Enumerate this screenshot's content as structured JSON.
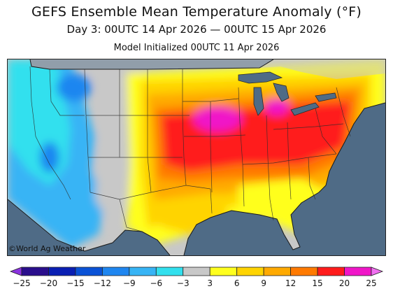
{
  "header": {
    "title": "GEFS Ensemble Mean Temperature Anomaly (°F)",
    "subtitle": "Day 3: 00UTC 14 Apr 2026 — 00UTC 15 Apr 2026",
    "initialized": "Model Initialized 00UTC 11 Apr 2026"
  },
  "credit": "©World Ag Weather",
  "colorbar": {
    "bins": [
      {
        "color": "#8b33e0"
      },
      {
        "color": "#2a0e8c"
      },
      {
        "color": "#0a1fb3"
      },
      {
        "color": "#0a52d6"
      },
      {
        "color": "#1f86f0"
      },
      {
        "color": "#37b4f5"
      },
      {
        "color": "#32e0ee"
      },
      {
        "color": "#c8c8c8"
      },
      {
        "color": "#ffff1e"
      },
      {
        "color": "#ffd400"
      },
      {
        "color": "#ffaa00"
      },
      {
        "color": "#ff7a00"
      },
      {
        "color": "#ff1c1c"
      },
      {
        "color": "#f016c8"
      },
      {
        "color": "#f070f0"
      }
    ],
    "labels": [
      "−25",
      "−20",
      "−15",
      "−12",
      "−9",
      "−6",
      "−3",
      "3",
      "6",
      "9",
      "12",
      "15",
      "20",
      "25"
    ]
  },
  "colors": {
    "ocean": "#4f6b86",
    "outside": "#8a8a8a",
    "borders": "#2b2b2b"
  }
}
